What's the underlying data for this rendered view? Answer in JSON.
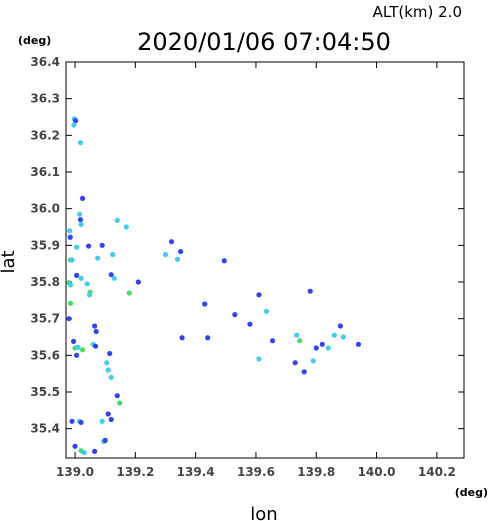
{
  "chart_data": {
    "type": "scatter",
    "title": "2020/01/06 07:04:50",
    "subtitle": "ALT(km)  2.0",
    "xlabel": "lon",
    "ylabel": "lat",
    "xunit": "(deg)",
    "yunit": "(deg)",
    "xlim": [
      138.97,
      140.29
    ],
    "ylim": [
      35.32,
      36.4
    ],
    "xticks": [
      "139.0",
      "139.2",
      "139.4",
      "139.6",
      "139.8",
      "140.0",
      "140.2"
    ],
    "yticks": [
      "35.4",
      "35.5",
      "35.6",
      "35.7",
      "35.8",
      "35.9",
      "36.0",
      "36.1",
      "36.2",
      "36.3",
      "36.4"
    ],
    "grid": false,
    "colors": {
      "blue": "#3344ee",
      "cyan": "#44ccee",
      "green": "#44dd66",
      "deep": "#2233cc"
    },
    "points": [
      {
        "x": 138.998,
        "y": 36.245,
        "c": "cyan"
      },
      {
        "x": 139.002,
        "y": 36.24,
        "c": "blue"
      },
      {
        "x": 138.996,
        "y": 36.228,
        "c": "cyan"
      },
      {
        "x": 139.018,
        "y": 36.18,
        "c": "cyan"
      },
      {
        "x": 139.025,
        "y": 36.028,
        "c": "blue"
      },
      {
        "x": 139.015,
        "y": 35.985,
        "c": "cyan"
      },
      {
        "x": 139.018,
        "y": 35.97,
        "c": "blue"
      },
      {
        "x": 139.02,
        "y": 35.957,
        "c": "cyan"
      },
      {
        "x": 138.982,
        "y": 35.94,
        "c": "cyan"
      },
      {
        "x": 138.984,
        "y": 35.922,
        "c": "blue"
      },
      {
        "x": 138.985,
        "y": 35.86,
        "c": "green"
      },
      {
        "x": 138.99,
        "y": 35.86,
        "c": "cyan"
      },
      {
        "x": 139.005,
        "y": 35.895,
        "c": "cyan"
      },
      {
        "x": 139.045,
        "y": 35.898,
        "c": "blue"
      },
      {
        "x": 139.075,
        "y": 35.865,
        "c": "cyan"
      },
      {
        "x": 139.09,
        "y": 35.9,
        "c": "blue"
      },
      {
        "x": 139.005,
        "y": 35.818,
        "c": "blue"
      },
      {
        "x": 139.02,
        "y": 35.81,
        "c": "cyan"
      },
      {
        "x": 138.98,
        "y": 35.798,
        "c": "green"
      },
      {
        "x": 138.985,
        "y": 35.792,
        "c": "cyan"
      },
      {
        "x": 139.04,
        "y": 35.795,
        "c": "cyan"
      },
      {
        "x": 139.05,
        "y": 35.772,
        "c": "green"
      },
      {
        "x": 139.048,
        "y": 35.765,
        "c": "cyan"
      },
      {
        "x": 138.985,
        "y": 35.742,
        "c": "green"
      },
      {
        "x": 138.98,
        "y": 35.7,
        "c": "blue"
      },
      {
        "x": 139.065,
        "y": 35.68,
        "c": "blue"
      },
      {
        "x": 139.07,
        "y": 35.665,
        "c": "blue"
      },
      {
        "x": 138.995,
        "y": 35.638,
        "c": "blue"
      },
      {
        "x": 139.0,
        "y": 35.62,
        "c": "green"
      },
      {
        "x": 139.01,
        "y": 35.622,
        "c": "cyan"
      },
      {
        "x": 139.025,
        "y": 35.615,
        "c": "green"
      },
      {
        "x": 139.005,
        "y": 35.6,
        "c": "blue"
      },
      {
        "x": 139.06,
        "y": 35.63,
        "c": "cyan"
      },
      {
        "x": 139.068,
        "y": 35.625,
        "c": "blue"
      },
      {
        "x": 139.115,
        "y": 35.605,
        "c": "blue"
      },
      {
        "x": 139.105,
        "y": 35.58,
        "c": "cyan"
      },
      {
        "x": 139.11,
        "y": 35.56,
        "c": "cyan"
      },
      {
        "x": 139.12,
        "y": 35.54,
        "c": "cyan"
      },
      {
        "x": 139.14,
        "y": 35.49,
        "c": "blue"
      },
      {
        "x": 139.148,
        "y": 35.47,
        "c": "green"
      },
      {
        "x": 139.11,
        "y": 35.44,
        "c": "blue"
      },
      {
        "x": 139.12,
        "y": 35.425,
        "c": "blue"
      },
      {
        "x": 139.09,
        "y": 35.42,
        "c": "cyan"
      },
      {
        "x": 139.015,
        "y": 35.42,
        "c": "cyan"
      },
      {
        "x": 139.02,
        "y": 35.417,
        "c": "blue"
      },
      {
        "x": 138.99,
        "y": 35.42,
        "c": "blue"
      },
      {
        "x": 139.095,
        "y": 35.365,
        "c": "cyan"
      },
      {
        "x": 139.1,
        "y": 35.368,
        "c": "blue"
      },
      {
        "x": 139.0,
        "y": 35.352,
        "c": "blue"
      },
      {
        "x": 139.02,
        "y": 35.34,
        "c": "green"
      },
      {
        "x": 139.065,
        "y": 35.338,
        "c": "blue"
      },
      {
        "x": 139.03,
        "y": 35.335,
        "c": "cyan"
      },
      {
        "x": 139.125,
        "y": 35.875,
        "c": "cyan"
      },
      {
        "x": 139.14,
        "y": 35.968,
        "c": "cyan"
      },
      {
        "x": 139.17,
        "y": 35.95,
        "c": "cyan"
      },
      {
        "x": 139.12,
        "y": 35.82,
        "c": "blue"
      },
      {
        "x": 139.13,
        "y": 35.81,
        "c": "cyan"
      },
      {
        "x": 139.18,
        "y": 35.77,
        "c": "green"
      },
      {
        "x": 139.32,
        "y": 35.91,
        "c": "blue"
      },
      {
        "x": 139.3,
        "y": 35.875,
        "c": "cyan"
      },
      {
        "x": 139.35,
        "y": 35.883,
        "c": "blue"
      },
      {
        "x": 139.34,
        "y": 35.862,
        "c": "cyan"
      },
      {
        "x": 139.21,
        "y": 35.8,
        "c": "blue"
      },
      {
        "x": 139.355,
        "y": 35.648,
        "c": "blue"
      },
      {
        "x": 139.44,
        "y": 35.648,
        "c": "blue"
      },
      {
        "x": 139.495,
        "y": 35.858,
        "c": "blue"
      },
      {
        "x": 139.53,
        "y": 35.711,
        "c": "blue"
      },
      {
        "x": 139.58,
        "y": 35.685,
        "c": "blue"
      },
      {
        "x": 139.61,
        "y": 35.765,
        "c": "blue"
      },
      {
        "x": 139.635,
        "y": 35.72,
        "c": "cyan"
      },
      {
        "x": 139.655,
        "y": 35.64,
        "c": "blue"
      },
      {
        "x": 139.61,
        "y": 35.59,
        "c": "cyan"
      },
      {
        "x": 139.78,
        "y": 35.775,
        "c": "blue"
      },
      {
        "x": 139.735,
        "y": 35.655,
        "c": "cyan"
      },
      {
        "x": 139.745,
        "y": 35.64,
        "c": "green"
      },
      {
        "x": 139.73,
        "y": 35.58,
        "c": "blue"
      },
      {
        "x": 139.76,
        "y": 35.555,
        "c": "blue"
      },
      {
        "x": 139.79,
        "y": 35.585,
        "c": "cyan"
      },
      {
        "x": 139.8,
        "y": 35.62,
        "c": "blue"
      },
      {
        "x": 139.82,
        "y": 35.63,
        "c": "blue"
      },
      {
        "x": 139.86,
        "y": 35.655,
        "c": "cyan"
      },
      {
        "x": 139.88,
        "y": 35.68,
        "c": "blue"
      },
      {
        "x": 139.89,
        "y": 35.65,
        "c": "cyan"
      },
      {
        "x": 139.84,
        "y": 35.62,
        "c": "cyan"
      },
      {
        "x": 139.94,
        "y": 35.63,
        "c": "blue"
      },
      {
        "x": 139.43,
        "y": 35.74,
        "c": "blue"
      }
    ]
  }
}
